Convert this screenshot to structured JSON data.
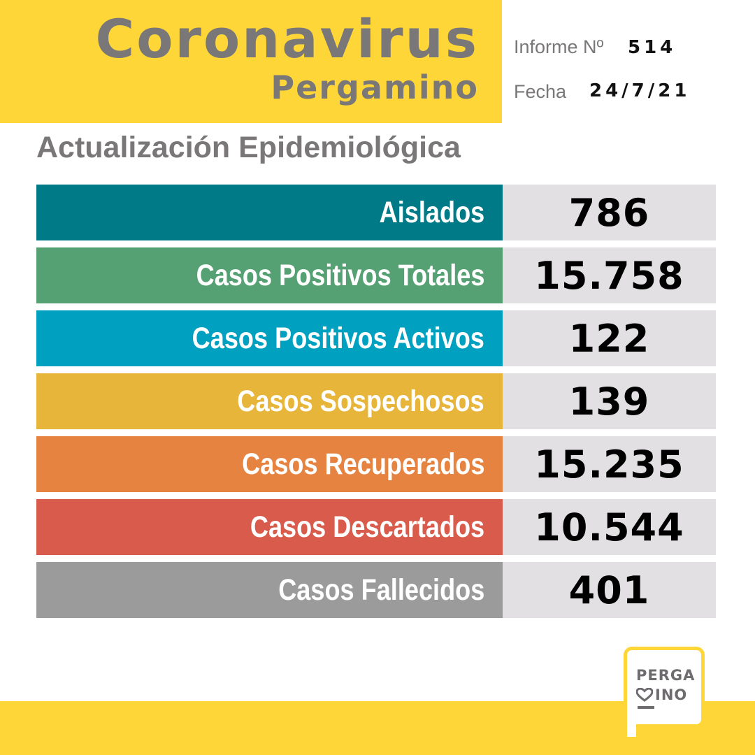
{
  "header": {
    "title": "Coronavirus",
    "city": "Pergamino",
    "report_label": "Informe Nº",
    "report_number": "514",
    "date_label": "Fecha",
    "date_value": "24/7/21",
    "band_color": "#fed638"
  },
  "subtitle": "Actualización Epidemiológica",
  "stats": [
    {
      "label": "Aislados",
      "value": "786",
      "color": "#007a86"
    },
    {
      "label": "Casos Positivos Totales",
      "value": "15.758",
      "color": "#55a173"
    },
    {
      "label": "Casos Positivos Activos",
      "value": "122",
      "color": "#00a0c1"
    },
    {
      "label": "Casos Sospechosos",
      "value": "139",
      "color": "#e6b53a"
    },
    {
      "label": "Casos Recuperados",
      "value": "15.235",
      "color": "#e68340"
    },
    {
      "label": "Casos Descartados",
      "value": "10.544",
      "color": "#d95b4b"
    },
    {
      "label": "Casos Fallecidos",
      "value": "401",
      "color": "#9c9b9c"
    }
  ],
  "logo": {
    "line1": "PERGA",
    "line2": "INO",
    "icon": "heart-icon"
  }
}
